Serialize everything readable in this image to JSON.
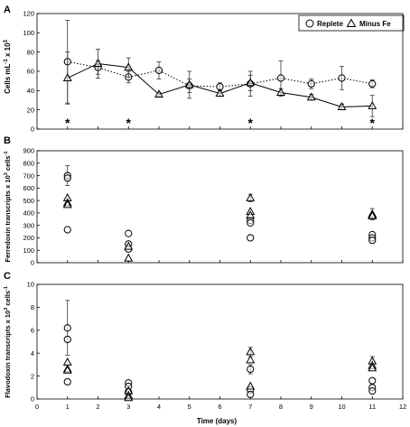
{
  "panels": [
    {
      "letter": "A"
    },
    {
      "letter": "B"
    },
    {
      "letter": "C"
    }
  ],
  "legend": {
    "replete": "Replete",
    "minus_fe": "Minus Fe"
  },
  "asterisk_days": [
    1,
    3,
    7,
    11
  ],
  "asterisk_symbol": "*",
  "chart_data": [
    {
      "type": "line",
      "panel": "A",
      "ylabel": "Cells mL-1 x 10³",
      "ylabel_parts": {
        "base": "Cells mL",
        "sup1": "-1",
        "mid": " x 10",
        "sup2": "3"
      },
      "xlim": [
        0,
        12
      ],
      "ylim": [
        0,
        120
      ],
      "yticks": [
        0,
        20,
        40,
        60,
        80,
        100,
        120
      ],
      "grid": false,
      "legend_position": "top-right",
      "series": [
        {
          "name": "Replete",
          "marker": "circle",
          "line": "dotted",
          "x": [
            1,
            2,
            3,
            4,
            5,
            6,
            7,
            8,
            9,
            10,
            11
          ],
          "y": [
            70,
            64,
            54,
            61,
            45,
            44,
            47,
            53,
            47,
            53,
            47
          ],
          "err": [
            43,
            7,
            6,
            9,
            7,
            4,
            13,
            18,
            5,
            12,
            4
          ]
        },
        {
          "name": "Minus Fe",
          "marker": "triangle",
          "line": "solid",
          "x": [
            1,
            2,
            3,
            4,
            5,
            6,
            7,
            8,
            9,
            10,
            11
          ],
          "y": [
            53,
            68,
            64,
            36,
            46,
            37,
            48,
            38,
            33,
            23,
            24
          ],
          "err": [
            27,
            15,
            10,
            2,
            14,
            3,
            8,
            4,
            3,
            3,
            11
          ]
        }
      ]
    },
    {
      "type": "scatter",
      "panel": "B",
      "ylabel": "Ferredoxin transcripts x 10³ cells-1",
      "ylabel_parts": {
        "base": "Ferredoxin transcripts x 10",
        "sup1": "3",
        "mid": " cells",
        "sup2": "-1"
      },
      "xlim": [
        0,
        12
      ],
      "ylim": [
        0,
        900
      ],
      "yticks": [
        0,
        100,
        200,
        300,
        400,
        500,
        600,
        700,
        800,
        900
      ],
      "grid": false,
      "series": [
        {
          "name": "Replete",
          "marker": "circle",
          "points": [
            [
              1,
              700
            ],
            [
              1,
              680
            ],
            [
              1,
              265
            ],
            [
              3,
              235
            ],
            [
              3,
              150
            ],
            [
              3,
              110
            ],
            [
              7,
              340
            ],
            [
              7,
              320
            ],
            [
              7,
              200
            ],
            [
              11,
              225
            ],
            [
              11,
              200
            ],
            [
              11,
              180
            ]
          ],
          "errorbars": [
            {
              "x": 1,
              "y": 700,
              "err": 80
            }
          ]
        },
        {
          "name": "Minus Fe",
          "marker": "triangle",
          "points": [
            [
              1,
              520
            ],
            [
              1,
              480
            ],
            [
              1,
              465
            ],
            [
              3,
              130
            ],
            [
              3,
              35
            ],
            [
              7,
              520
            ],
            [
              7,
              410
            ],
            [
              7,
              380
            ],
            [
              11,
              390
            ],
            [
              11,
              380
            ],
            [
              11,
              375
            ]
          ],
          "errorbars": [
            {
              "x": 7,
              "y": 520,
              "err": 30
            },
            {
              "x": 11,
              "y": 390,
              "err": 45
            }
          ]
        }
      ]
    },
    {
      "type": "scatter",
      "panel": "C",
      "ylabel": "Flavodoxin transcripts x 10³ cells-1",
      "ylabel_parts": {
        "base": "Flavodoxin transcripts x 10",
        "sup1": "3",
        "mid": " cells",
        "sup2": "-1"
      },
      "xlabel": "Time (days)",
      "xlim": [
        0,
        12
      ],
      "ylim": [
        0,
        10
      ],
      "xticks": [
        0,
        1,
        2,
        3,
        4,
        5,
        6,
        7,
        8,
        9,
        10,
        11,
        12
      ],
      "yticks": [
        0,
        2,
        4,
        6,
        8,
        10
      ],
      "grid": false,
      "series": [
        {
          "name": "Replete",
          "marker": "circle",
          "points": [
            [
              1,
              6.2
            ],
            [
              1,
              5.2
            ],
            [
              1,
              1.5
            ],
            [
              3,
              1.4
            ],
            [
              3,
              1.1
            ],
            [
              3,
              0.6
            ],
            [
              7,
              2.6
            ],
            [
              7,
              0.8
            ],
            [
              7,
              0.4
            ],
            [
              11,
              1.6
            ],
            [
              11,
              1.0
            ],
            [
              11,
              0.7
            ]
          ],
          "errorbars": [
            {
              "x": 1,
              "y": 6.2,
              "err": 2.4
            },
            {
              "x": 7,
              "y": 2.6,
              "err": 0.4
            }
          ]
        },
        {
          "name": "Minus Fe",
          "marker": "triangle",
          "points": [
            [
              1,
              3.2
            ],
            [
              1,
              2.6
            ],
            [
              1,
              2.5
            ],
            [
              3,
              0.7
            ],
            [
              3,
              0.3
            ],
            [
              3,
              0.1
            ],
            [
              7,
              4.1
            ],
            [
              7,
              3.4
            ],
            [
              7,
              1.1
            ],
            [
              11,
              3.3
            ],
            [
              11,
              2.9
            ],
            [
              11,
              2.7
            ]
          ],
          "errorbars": [
            {
              "x": 7,
              "y": 4.1,
              "err": 0.4
            },
            {
              "x": 11,
              "y": 3.3,
              "err": 0.4
            }
          ]
        }
      ]
    }
  ]
}
